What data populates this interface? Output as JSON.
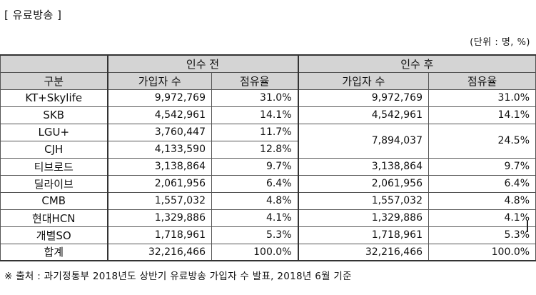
{
  "title": "[ 유료방송 ]",
  "unit": "(단위 : 명, %)",
  "table": {
    "header_top": {
      "blank": "",
      "before": "인수 전",
      "after": "인수 후"
    },
    "header_sub": {
      "category": "구분",
      "subscribers_before": "가입자 수",
      "share_before": "점유율",
      "subscribers_after": "가입자 수",
      "share_after": "점유율"
    },
    "rows": [
      {
        "name": "KT+Skylife",
        "sub_before": "9,972,769",
        "share_before": "31.0%",
        "sub_after": "9,972,769",
        "share_after": "31.0%"
      },
      {
        "name": "SKB",
        "sub_before": "4,542,961",
        "share_before": "14.1%",
        "sub_after": "4,542,961",
        "share_after": "14.1%"
      },
      {
        "name": "LGU+",
        "sub_before": "3,760,447",
        "share_before": "11.7%",
        "sub_after": "7,894,037",
        "share_after": "24.5%"
      },
      {
        "name": "CJH",
        "sub_before": "4,133,590",
        "share_before": "12.8%"
      },
      {
        "name": "티브로드",
        "sub_before": "3,138,864",
        "share_before": "9.7%",
        "sub_after": "3,138,864",
        "share_after": "9.7%"
      },
      {
        "name": "딜라이브",
        "sub_before": "2,061,956",
        "share_before": "6.4%",
        "sub_after": "2,061,956",
        "share_after": "6.4%"
      },
      {
        "name": "CMB",
        "sub_before": "1,557,032",
        "share_before": "4.8%",
        "sub_after": "1,557,032",
        "share_after": "4.8%"
      },
      {
        "name": "현대HCN",
        "sub_before": "1,329,886",
        "share_before": "4.1%",
        "sub_after": "1,329,886",
        "share_after": "4.1%"
      },
      {
        "name": "개별SO",
        "sub_before": "1,718,961",
        "share_before": "5.3%",
        "sub_after": "1,718,961",
        "share_after": "5.3%"
      },
      {
        "name": "합계",
        "sub_before": "32,216,466",
        "share_before": "100.0%",
        "sub_after": "32,216,466",
        "share_after": "100.0%"
      }
    ]
  },
  "source": "※ 출처 : 과기정통부 2018년도 상반기 유료방송 가입자 수 발표, 2018년 6월 기준"
}
